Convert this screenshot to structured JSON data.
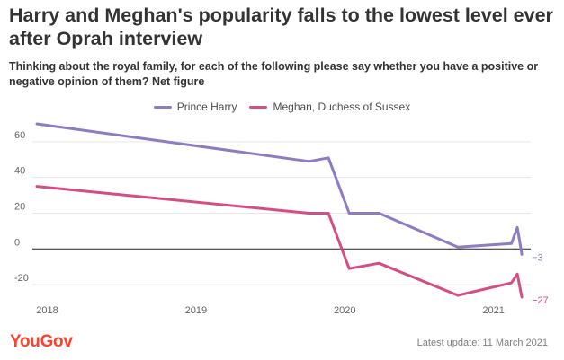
{
  "header": {
    "title": "Harry and Meghan's popularity falls to the lowest level ever after Oprah interview",
    "subtitle": "Thinking about the royal family, for each of the following please say whether you have a positive or negative opinion of them? Net figure"
  },
  "footer": {
    "brand": "YouGov",
    "update_note": "Latest update: 11 March 2021"
  },
  "chart_data": {
    "type": "line",
    "title": "Harry and Meghan's popularity falls to the lowest level ever after Oprah interview",
    "xlabel": "",
    "ylabel": "",
    "xlim": [
      2017.9,
      2021.25
    ],
    "ylim": [
      -30,
      75
    ],
    "x_ticks": [
      {
        "value": 2018.0,
        "label": "2018"
      },
      {
        "value": 2019.0,
        "label": "2019"
      },
      {
        "value": 2020.0,
        "label": "2020"
      },
      {
        "value": 2021.0,
        "label": "2021"
      }
    ],
    "y_ticks": [
      {
        "value": 60,
        "label": "60"
      },
      {
        "value": 40,
        "label": "40"
      },
      {
        "value": 20,
        "label": "20"
      },
      {
        "value": 0,
        "label": "0"
      },
      {
        "value": -20,
        "label": "-20"
      }
    ],
    "legend_position": "top-center",
    "grid": "horizontal",
    "series": [
      {
        "name": "Prince Harry",
        "color": "#8e7cc3",
        "end_label": "−3",
        "points": [
          {
            "x": 2017.93,
            "y": 70
          },
          {
            "x": 2019.76,
            "y": 49
          },
          {
            "x": 2019.89,
            "y": 51
          },
          {
            "x": 2020.03,
            "y": 20
          },
          {
            "x": 2020.23,
            "y": 20
          },
          {
            "x": 2020.76,
            "y": 1
          },
          {
            "x": 2021.12,
            "y": 3
          },
          {
            "x": 2021.16,
            "y": 12
          },
          {
            "x": 2021.19,
            "y": -3
          }
        ]
      },
      {
        "name": "Meghan, Duchess of Sussex",
        "color": "#d44d84",
        "end_label": "−27",
        "points": [
          {
            "x": 2017.93,
            "y": 35
          },
          {
            "x": 2019.76,
            "y": 20
          },
          {
            "x": 2019.89,
            "y": 20
          },
          {
            "x": 2020.03,
            "y": -11
          },
          {
            "x": 2020.23,
            "y": -8
          },
          {
            "x": 2020.76,
            "y": -26
          },
          {
            "x": 2021.12,
            "y": -19
          },
          {
            "x": 2021.16,
            "y": -14
          },
          {
            "x": 2021.19,
            "y": -27
          }
        ]
      }
    ]
  }
}
